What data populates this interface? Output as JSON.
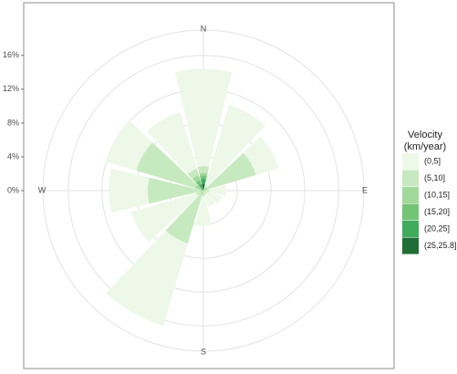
{
  "chart_data": {
    "type": "wind-rose",
    "categories": [
      "N",
      null,
      null,
      "E",
      null,
      null,
      "S",
      null,
      null,
      "W",
      null,
      null
    ],
    "ylim": [
      0,
      19
    ],
    "yticks": [
      {
        "value": 0,
        "label": "0%"
      },
      {
        "value": 4,
        "label": "4%"
      },
      {
        "value": 8,
        "label": "8%"
      },
      {
        "value": 12,
        "label": "12%"
      },
      {
        "value": 16,
        "label": "16%"
      }
    ],
    "grid": true,
    "legend_title": [
      "Velocity",
      "(km/year)"
    ],
    "legend_position": "right",
    "series": [
      {
        "name": "(0,5]",
        "color": "#edf8e9",
        "values": [
          11.5,
          10.0,
          2.8,
          2.0,
          1.8,
          1.5,
          3.5,
          10.2,
          8.0,
          4.6,
          3.8,
          7.0
        ]
      },
      {
        "name": "(5,10]",
        "color": "#c7e9c0",
        "values": [
          0.8,
          0.6,
          6.0,
          0.7,
          0.5,
          0.5,
          0.7,
          6.0,
          0.9,
          6.2,
          7.3,
          0.8
        ]
      },
      {
        "name": "(10,15]",
        "color": "#a1d99b",
        "values": [
          0.3,
          0,
          0.5,
          0,
          0,
          0,
          0,
          0.5,
          0,
          0.4,
          1.0,
          0.6
        ]
      },
      {
        "name": "(15,20]",
        "color": "#74c476",
        "values": [
          0.4,
          0,
          0,
          0,
          0,
          0,
          0,
          0,
          0,
          0,
          0,
          0.5
        ]
      },
      {
        "name": "(20,25]",
        "color": "#41ab5d",
        "values": [
          0.6,
          0,
          0,
          0,
          0,
          0,
          0,
          0,
          0,
          0,
          0,
          0.8
        ]
      },
      {
        "name": "(25,25.8]",
        "color": "#1f6e35",
        "values": [
          0.8,
          0,
          0,
          0,
          0,
          0,
          0,
          0,
          0,
          0,
          0,
          0
        ]
      }
    ]
  }
}
